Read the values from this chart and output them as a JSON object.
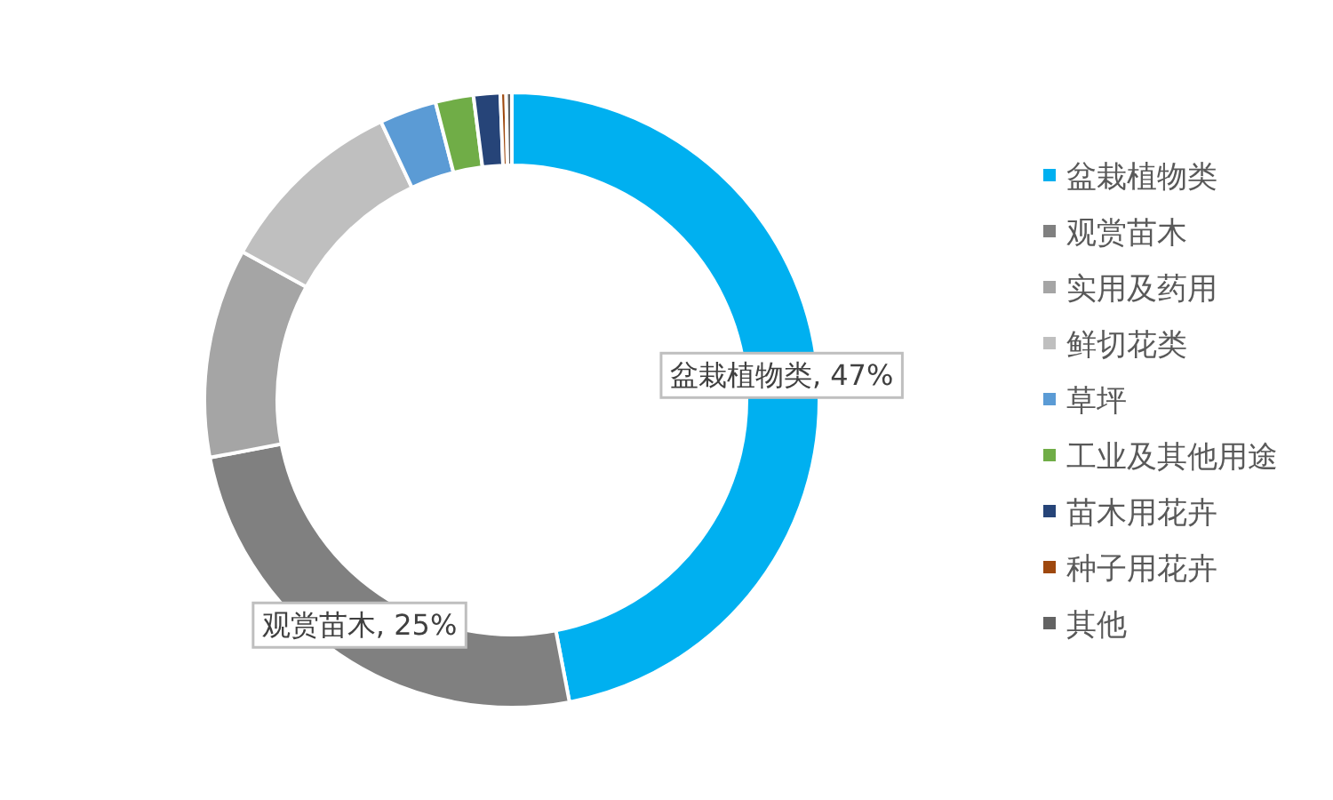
{
  "chart_data": {
    "type": "donut",
    "categories": [
      "盆栽植物类",
      "观赏苗木",
      "实用及药用",
      "鲜切花类",
      "草坪",
      "工业及其他用途",
      "苗木用花卉",
      "种子用花卉",
      "其他"
    ],
    "values": [
      47,
      25,
      11,
      10,
      3,
      2,
      1.4,
      0.3,
      0.3
    ],
    "colors": [
      "#00b0f0",
      "#808080",
      "#a5a5a5",
      "#bfbfbf",
      "#5b9bd5",
      "#70ad47",
      "#264478",
      "#9e480e",
      "#636363"
    ],
    "value_labels": [
      "盆栽植物类, 47%",
      "观赏苗木, 25%",
      null,
      null,
      null,
      null,
      null,
      null,
      null
    ],
    "legend": "right"
  }
}
